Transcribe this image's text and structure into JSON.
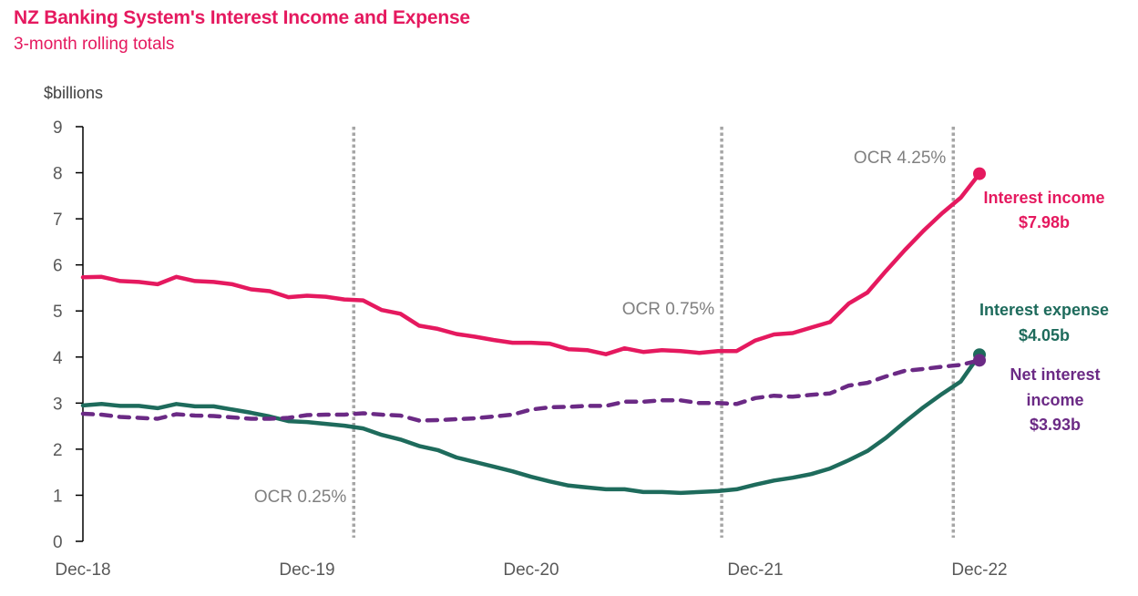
{
  "header": {
    "title": "NZ Banking System's Interest Income and Expense",
    "subtitle": "3-month rolling totals"
  },
  "chart_data": {
    "type": "line",
    "title": "NZ Banking System's Interest Income and Expense",
    "subtitle": "3-month rolling totals",
    "xlabel": "",
    "ylabel": "$billions",
    "ylim": [
      0,
      9
    ],
    "yticks": [
      "0",
      "1",
      "2",
      "3",
      "4",
      "5",
      "6",
      "7",
      "8",
      "9"
    ],
    "x_start": "Dec-18",
    "x_end": "Dec-22",
    "x_frequency": "monthly",
    "xticks": [
      {
        "label": "Dec-18",
        "index": 0
      },
      {
        "label": "Dec-19",
        "index": 12
      },
      {
        "label": "Dec-20",
        "index": 24
      },
      {
        "label": "Dec-21",
        "index": 36
      },
      {
        "label": "Dec-22",
        "index": 48
      }
    ],
    "grid": false,
    "legend": "direct-labels-right",
    "series": [
      {
        "name": "Interest income",
        "color": "#E5195F",
        "style": "solid",
        "end_label": [
          "Interest income",
          "$7.98b"
        ],
        "values": [
          5.73,
          5.74,
          5.65,
          5.63,
          5.58,
          5.74,
          5.65,
          5.63,
          5.58,
          5.47,
          5.43,
          5.3,
          5.33,
          5.31,
          5.25,
          5.23,
          5.02,
          4.94,
          4.68,
          4.61,
          4.5,
          4.44,
          4.37,
          4.31,
          4.31,
          4.29,
          4.17,
          4.15,
          4.06,
          4.19,
          4.11,
          4.15,
          4.13,
          4.09,
          4.13,
          4.13,
          4.36,
          4.49,
          4.52,
          4.64,
          4.76,
          5.16,
          5.4,
          5.87,
          6.32,
          6.74,
          7.12,
          7.46,
          7.98
        ]
      },
      {
        "name": "Interest expense",
        "color": "#1E6B5C",
        "style": "solid",
        "end_label": [
          "Interest expense",
          "$4.05b"
        ],
        "values": [
          2.95,
          2.98,
          2.94,
          2.94,
          2.89,
          2.98,
          2.93,
          2.93,
          2.86,
          2.79,
          2.71,
          2.61,
          2.59,
          2.55,
          2.51,
          2.45,
          2.31,
          2.21,
          2.07,
          1.98,
          1.82,
          1.72,
          1.62,
          1.52,
          1.4,
          1.3,
          1.21,
          1.17,
          1.13,
          1.13,
          1.07,
          1.07,
          1.05,
          1.07,
          1.09,
          1.13,
          1.23,
          1.32,
          1.38,
          1.46,
          1.58,
          1.76,
          1.96,
          2.25,
          2.59,
          2.91,
          3.2,
          3.47,
          4.05
        ]
      },
      {
        "name": "Net interest income",
        "color": "#6B2A85",
        "style": "dashed",
        "end_label": [
          "Net interest",
          "income",
          "$3.93b"
        ],
        "values": [
          2.77,
          2.75,
          2.7,
          2.68,
          2.66,
          2.76,
          2.73,
          2.72,
          2.69,
          2.66,
          2.66,
          2.68,
          2.74,
          2.75,
          2.75,
          2.78,
          2.75,
          2.73,
          2.62,
          2.63,
          2.65,
          2.67,
          2.71,
          2.75,
          2.86,
          2.91,
          2.92,
          2.94,
          2.94,
          3.03,
          3.03,
          3.06,
          3.06,
          3.0,
          3.0,
          2.98,
          3.11,
          3.16,
          3.14,
          3.18,
          3.21,
          3.38,
          3.44,
          3.58,
          3.7,
          3.74,
          3.79,
          3.83,
          3.93
        ]
      }
    ],
    "annotations": [
      {
        "label": "OCR 0.25%",
        "index": 14.5,
        "label_position": "bottom-left"
      },
      {
        "label": "OCR 0.75%",
        "index": 34.2,
        "label_position": "middle-left"
      },
      {
        "label": "OCR 4.25%",
        "index": 46.6,
        "label_position": "top-left"
      }
    ],
    "annotation_color": "#A6A6A6"
  }
}
